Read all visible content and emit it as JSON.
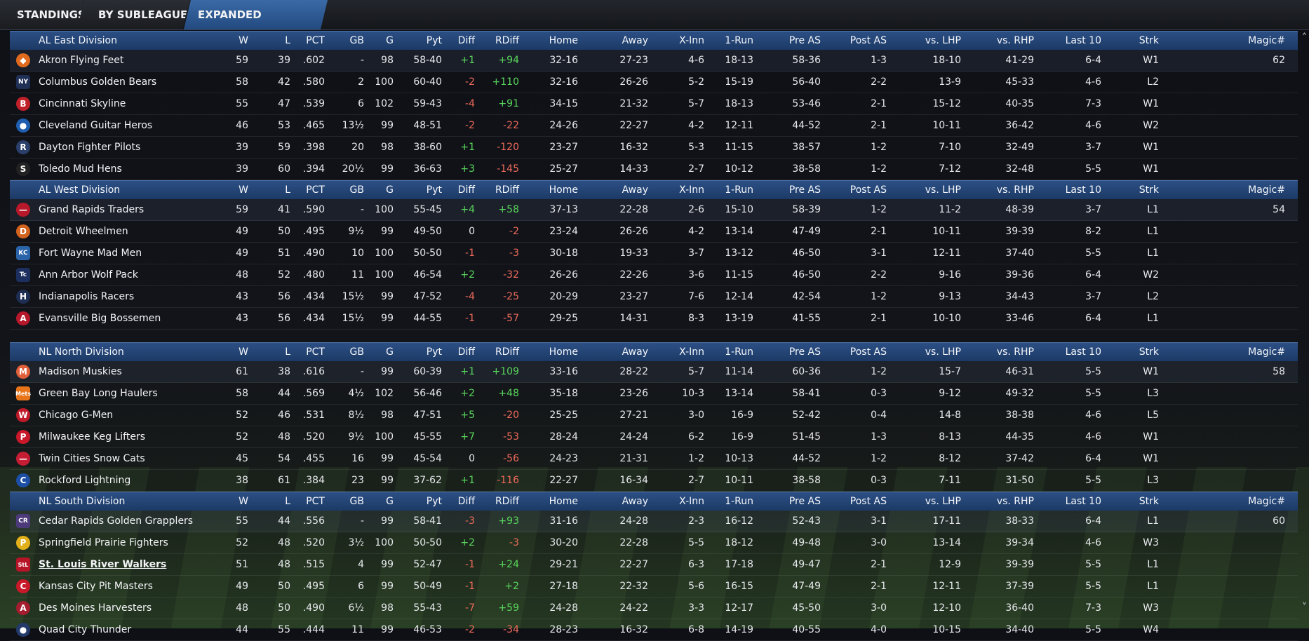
{
  "tabs": [
    "STANDINGS",
    "BY SUBLEAGUE",
    "EXPANDED STANDINGS"
  ],
  "columns": {
    "w": "W",
    "l": "L",
    "pct": "PCT",
    "gb": "GB",
    "g": "G",
    "pyt": "Pyt",
    "diff": "Diff",
    "rdiff": "RDiff",
    "home": "Home",
    "away": "Away",
    "xinn": "X-Inn",
    "onerun": "1-Run",
    "pre": "Pre AS",
    "post": "Post AS",
    "lhp": "vs. LHP",
    "rhp": "vs. RHP",
    "l10": "Last 10",
    "strk": "Strk",
    "magic": "Magic#"
  },
  "scroll": {
    "up": "˄",
    "down": "˅"
  },
  "divisions": [
    {
      "name": "AL East Division",
      "teams": [
        {
          "logo": "orioles-bird-logo",
          "logo_char": "◆",
          "logo_color": "#e06a1e",
          "name": "Akron  Flying Feet",
          "w": "59",
          "l": "39",
          "pct": ".602",
          "gb": "-",
          "g": "98",
          "pyt": "58-40",
          "diff": "+1",
          "rdiff": "+94",
          "home": "32-16",
          "away": "27-23",
          "xinn": "4-6",
          "onerun": "18-13",
          "pre": "58-36",
          "post": "1-3",
          "lhp": "18-10",
          "rhp": "41-29",
          "l10": "6-4",
          "strk": "W1",
          "magic": "62"
        },
        {
          "logo": "yankees-logo",
          "logo_char": "NY",
          "logo_color": "#1f2f55",
          "name": "Columbus Golden Bears",
          "w": "58",
          "l": "42",
          "pct": ".580",
          "gb": "2",
          "g": "100",
          "pyt": "60-40",
          "diff": "-2",
          "rdiff": "+110",
          "home": "32-16",
          "away": "26-26",
          "xinn": "5-2",
          "onerun": "15-19",
          "pre": "56-40",
          "post": "2-2",
          "lhp": "13-9",
          "rhp": "45-33",
          "l10": "4-6",
          "strk": "L2",
          "magic": ""
        },
        {
          "logo": "redsox-logo",
          "logo_char": "B",
          "logo_color": "#c0202a",
          "name": "Cincinnati Skyline",
          "w": "55",
          "l": "47",
          "pct": ".539",
          "gb": "6",
          "g": "102",
          "pyt": "59-43",
          "diff": "-4",
          "rdiff": "+91",
          "home": "34-15",
          "away": "21-32",
          "xinn": "5-7",
          "onerun": "18-13",
          "pre": "53-46",
          "post": "2-1",
          "lhp": "15-12",
          "rhp": "40-35",
          "l10": "7-3",
          "strk": "W1",
          "magic": ""
        },
        {
          "logo": "bluejays-logo",
          "logo_char": "●",
          "logo_color": "#1f5fb0",
          "name": "Cleveland Guitar Heros",
          "w": "46",
          "l": "53",
          "pct": ".465",
          "gb": "13½",
          "g": "99",
          "pyt": "48-51",
          "diff": "-2",
          "rdiff": "-22",
          "home": "24-26",
          "away": "22-27",
          "xinn": "4-2",
          "onerun": "12-11",
          "pre": "44-52",
          "post": "2-1",
          "lhp": "10-11",
          "rhp": "36-42",
          "l10": "4-6",
          "strk": "W2",
          "magic": ""
        },
        {
          "logo": "rays-logo",
          "logo_char": "R",
          "logo_color": "#2a3f6a",
          "name": "Dayton Fighter Pilots",
          "w": "39",
          "l": "59",
          "pct": ".398",
          "gb": "20",
          "g": "98",
          "pyt": "38-60",
          "diff": "+1",
          "rdiff": "-120",
          "home": "23-27",
          "away": "16-32",
          "xinn": "5-3",
          "onerun": "11-15",
          "pre": "38-57",
          "post": "1-2",
          "lhp": "7-10",
          "rhp": "32-49",
          "l10": "3-7",
          "strk": "W1",
          "magic": ""
        },
        {
          "logo": "whitesox-logo",
          "logo_char": "S",
          "logo_color": "#222",
          "name": "Toledo  Mud Hens",
          "w": "39",
          "l": "60",
          "pct": ".394",
          "gb": "20½",
          "g": "99",
          "pyt": "36-63",
          "diff": "+3",
          "rdiff": "-145",
          "home": "25-27",
          "away": "14-33",
          "xinn": "2-7",
          "onerun": "10-12",
          "pre": "38-58",
          "post": "1-2",
          "lhp": "7-12",
          "rhp": "32-48",
          "l10": "5-5",
          "strk": "W1",
          "magic": ""
        }
      ]
    },
    {
      "name": "AL West Division",
      "teams": [
        {
          "logo": "indians-logo",
          "logo_char": "—",
          "logo_color": "#b8192a",
          "name": "Grand Rapids Traders",
          "w": "59",
          "l": "41",
          "pct": ".590",
          "gb": "-",
          "g": "100",
          "pyt": "55-45",
          "diff": "+4",
          "rdiff": "+58",
          "home": "37-13",
          "away": "22-28",
          "xinn": "2-6",
          "onerun": "15-10",
          "pre": "58-39",
          "post": "1-2",
          "lhp": "11-2",
          "rhp": "48-39",
          "l10": "3-7",
          "strk": "L1",
          "magic": "54"
        },
        {
          "logo": "tigers-logo",
          "logo_char": "D",
          "logo_color": "#d2621c",
          "name": "Detroit Wheelmen",
          "w": "49",
          "l": "50",
          "pct": ".495",
          "gb": "9½",
          "g": "99",
          "pyt": "49-50",
          "diff": "0",
          "rdiff": "-2",
          "home": "23-24",
          "away": "26-26",
          "xinn": "4-2",
          "onerun": "13-14",
          "pre": "47-49",
          "post": "2-1",
          "lhp": "10-11",
          "rhp": "39-39",
          "l10": "8-2",
          "strk": "L1",
          "magic": ""
        },
        {
          "logo": "royals-logo",
          "logo_char": "KC",
          "logo_color": "#2a63a8",
          "name": "Fort Wayne Mad Men",
          "w": "49",
          "l": "51",
          "pct": ".490",
          "gb": "10",
          "g": "100",
          "pyt": "50-50",
          "diff": "-1",
          "rdiff": "-3",
          "home": "30-18",
          "away": "19-33",
          "xinn": "3-7",
          "onerun": "13-12",
          "pre": "46-50",
          "post": "3-1",
          "lhp": "12-11",
          "rhp": "37-40",
          "l10": "5-5",
          "strk": "L1",
          "magic": ""
        },
        {
          "logo": "twins-logo",
          "logo_char": "Tc",
          "logo_color": "#1d2f5e",
          "name": "Ann Arbor Wolf Pack",
          "w": "48",
          "l": "52",
          "pct": ".480",
          "gb": "11",
          "g": "100",
          "pyt": "46-54",
          "diff": "+2",
          "rdiff": "-32",
          "home": "26-26",
          "away": "22-26",
          "xinn": "3-6",
          "onerun": "11-15",
          "pre": "46-50",
          "post": "2-2",
          "lhp": "9-16",
          "rhp": "39-36",
          "l10": "6-4",
          "strk": "W2",
          "magic": ""
        },
        {
          "logo": "astros-logo",
          "logo_char": "H",
          "logo_color": "#1e2d52",
          "name": "Indianapolis Racers",
          "w": "43",
          "l": "56",
          "pct": ".434",
          "gb": "15½",
          "g": "99",
          "pyt": "47-52",
          "diff": "-4",
          "rdiff": "-25",
          "home": "20-29",
          "away": "23-27",
          "xinn": "7-6",
          "onerun": "12-14",
          "pre": "42-54",
          "post": "1-2",
          "lhp": "9-13",
          "rhp": "34-43",
          "l10": "3-7",
          "strk": "L2",
          "magic": ""
        },
        {
          "logo": "angels-logo",
          "logo_char": "A",
          "logo_color": "#b5182a",
          "name": "Evansville Big Bossemen",
          "w": "43",
          "l": "56",
          "pct": ".434",
          "gb": "15½",
          "g": "99",
          "pyt": "44-55",
          "diff": "-1",
          "rdiff": "-57",
          "home": "29-25",
          "away": "14-31",
          "xinn": "8-3",
          "onerun": "13-19",
          "pre": "41-55",
          "post": "2-1",
          "lhp": "10-10",
          "rhp": "33-46",
          "l10": "6-4",
          "strk": "L1",
          "magic": ""
        }
      ]
    },
    {
      "name": "NL North Division",
      "teams": [
        {
          "logo": "marlins-logo",
          "logo_char": "M",
          "logo_color": "#e0603a",
          "name": "Madison Muskies",
          "w": "61",
          "l": "38",
          "pct": ".616",
          "gb": "-",
          "g": "99",
          "pyt": "60-39",
          "diff": "+1",
          "rdiff": "+109",
          "home": "33-16",
          "away": "28-22",
          "xinn": "5-7",
          "onerun": "11-14",
          "pre": "60-36",
          "post": "1-2",
          "lhp": "15-7",
          "rhp": "46-31",
          "l10": "5-5",
          "strk": "W1",
          "magic": "58"
        },
        {
          "logo": "mets-logo",
          "logo_char": "Mets",
          "logo_color": "#e8741a",
          "name": "Green Bay  Long Haulers",
          "w": "58",
          "l": "44",
          "pct": ".569",
          "gb": "4½",
          "g": "102",
          "pyt": "56-46",
          "diff": "+2",
          "rdiff": "+48",
          "home": "35-18",
          "away": "23-26",
          "xinn": "10-3",
          "onerun": "13-14",
          "pre": "58-41",
          "post": "0-3",
          "lhp": "9-12",
          "rhp": "49-32",
          "l10": "5-5",
          "strk": "L3",
          "magic": ""
        },
        {
          "logo": "nationals-logo",
          "logo_char": "W",
          "logo_color": "#c01a2a",
          "name": "Chicago G-Men",
          "w": "52",
          "l": "46",
          "pct": ".531",
          "gb": "8½",
          "g": "98",
          "pyt": "47-51",
          "diff": "+5",
          "rdiff": "-20",
          "home": "25-25",
          "away": "27-21",
          "xinn": "3-0",
          "onerun": "16-9",
          "pre": "52-42",
          "post": "0-4",
          "lhp": "14-8",
          "rhp": "38-38",
          "l10": "4-6",
          "strk": "L5",
          "magic": ""
        },
        {
          "logo": "phillies-logo",
          "logo_char": "P",
          "logo_color": "#c8182a",
          "name": "Milwaukee Keg Lifters",
          "w": "52",
          "l": "48",
          "pct": ".520",
          "gb": "9½",
          "g": "100",
          "pyt": "45-55",
          "diff": "+7",
          "rdiff": "-53",
          "home": "28-24",
          "away": "24-24",
          "xinn": "6-2",
          "onerun": "16-9",
          "pre": "51-45",
          "post": "1-3",
          "lhp": "8-13",
          "rhp": "44-35",
          "l10": "4-6",
          "strk": "W1",
          "magic": ""
        },
        {
          "logo": "braves-logo",
          "logo_char": "—",
          "logo_color": "#c41d34",
          "name": "Twin Cities Snow Cats",
          "w": "45",
          "l": "54",
          "pct": ".455",
          "gb": "16",
          "g": "99",
          "pyt": "45-54",
          "diff": "0",
          "rdiff": "-56",
          "home": "24-23",
          "away": "21-31",
          "xinn": "1-2",
          "onerun": "10-13",
          "pre": "44-52",
          "post": "1-2",
          "lhp": "8-12",
          "rhp": "37-42",
          "l10": "6-4",
          "strk": "W1",
          "magic": ""
        },
        {
          "logo": "cubs-logo",
          "logo_char": "C",
          "logo_color": "#1c4fa5",
          "name": "Rockford Lightning",
          "w": "38",
          "l": "61",
          "pct": ".384",
          "gb": "23",
          "g": "99",
          "pyt": "37-62",
          "diff": "+1",
          "rdiff": "-116",
          "home": "22-27",
          "away": "16-34",
          "xinn": "2-7",
          "onerun": "10-11",
          "pre": "38-58",
          "post": "0-3",
          "lhp": "7-11",
          "rhp": "31-50",
          "l10": "5-5",
          "strk": "L3",
          "magic": ""
        }
      ]
    },
    {
      "name": "NL South Division",
      "teams": [
        {
          "logo": "rockies-logo",
          "logo_char": "CR",
          "logo_color": "#4c3a7a",
          "name": "Cedar Rapids Golden Grapplers",
          "w": "55",
          "l": "44",
          "pct": ".556",
          "gb": "-",
          "g": "99",
          "pyt": "58-41",
          "diff": "-3",
          "rdiff": "+93",
          "home": "31-16",
          "away": "24-28",
          "xinn": "2-3",
          "onerun": "16-12",
          "pre": "52-43",
          "post": "3-1",
          "lhp": "17-11",
          "rhp": "38-33",
          "l10": "6-4",
          "strk": "L1",
          "magic": "60"
        },
        {
          "logo": "pirates-logo",
          "logo_char": "P",
          "logo_color": "#e2b018",
          "name": "Springfield Prairie Fighters",
          "w": "52",
          "l": "48",
          "pct": ".520",
          "gb": "3½",
          "g": "100",
          "pyt": "50-50",
          "diff": "+2",
          "rdiff": "-3",
          "home": "30-20",
          "away": "22-28",
          "xinn": "5-5",
          "onerun": "18-12",
          "pre": "49-48",
          "post": "3-0",
          "lhp": "13-14",
          "rhp": "39-34",
          "l10": "4-6",
          "strk": "W3",
          "magic": ""
        },
        {
          "logo": "cardinals-logo",
          "logo_char": "StL",
          "logo_color": "#b81428",
          "name": "St. Louis River Walkers",
          "w": "51",
          "l": "48",
          "pct": ".515",
          "gb": "4",
          "g": "99",
          "pyt": "52-47",
          "diff": "-1",
          "rdiff": "+24",
          "home": "29-21",
          "away": "22-27",
          "xinn": "6-3",
          "onerun": "17-18",
          "pre": "49-47",
          "post": "2-1",
          "lhp": "12-9",
          "rhp": "39-39",
          "l10": "5-5",
          "strk": "L1",
          "magic": "",
          "link": true
        },
        {
          "logo": "reds-logo",
          "logo_char": "C",
          "logo_color": "#c8182a",
          "name": "Kansas City Pit Masters",
          "w": "49",
          "l": "50",
          "pct": ".495",
          "gb": "6",
          "g": "99",
          "pyt": "50-49",
          "diff": "-1",
          "rdiff": "+2",
          "home": "27-18",
          "away": "22-32",
          "xinn": "5-6",
          "onerun": "16-15",
          "pre": "47-49",
          "post": "2-1",
          "lhp": "12-11",
          "rhp": "37-39",
          "l10": "5-5",
          "strk": "L1",
          "magic": ""
        },
        {
          "logo": "diamondbacks-logo",
          "logo_char": "A",
          "logo_color": "#a31d2f",
          "name": "Des Moines   Harvesters",
          "w": "48",
          "l": "50",
          "pct": ".490",
          "gb": "6½",
          "g": "98",
          "pyt": "55-43",
          "diff": "-7",
          "rdiff": "+59",
          "home": "24-28",
          "away": "24-22",
          "xinn": "3-3",
          "onerun": "12-17",
          "pre": "45-50",
          "post": "3-0",
          "lhp": "12-10",
          "rhp": "36-40",
          "l10": "7-3",
          "strk": "W3",
          "magic": ""
        },
        {
          "logo": "brewers-logo",
          "logo_char": "●",
          "logo_color": "#233a6a",
          "name": "Quad City Thunder",
          "w": "44",
          "l": "55",
          "pct": ".444",
          "gb": "11",
          "g": "99",
          "pyt": "46-53",
          "diff": "-2",
          "rdiff": "-34",
          "home": "28-23",
          "away": "16-32",
          "xinn": "6-8",
          "onerun": "14-19",
          "pre": "40-55",
          "post": "4-0",
          "lhp": "10-15",
          "rhp": "34-40",
          "l10": "5-5",
          "strk": "W4",
          "magic": ""
        }
      ]
    }
  ]
}
